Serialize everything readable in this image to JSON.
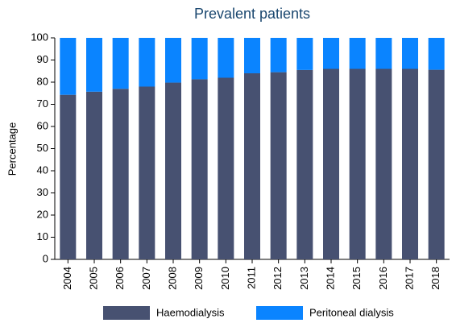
{
  "chart_data": {
    "type": "stacked_bar",
    "title": "Prevalent patients",
    "y_label": "Percentage",
    "categories": [
      "2004",
      "2005",
      "2006",
      "2007",
      "2008",
      "2009",
      "2010",
      "2011",
      "2012",
      "2013",
      "2014",
      "2015",
      "2016",
      "2017",
      "2018"
    ],
    "series": [
      {
        "name": "Haemodialysis",
        "color": "#475171",
        "values": [
          74.3,
          75.7,
          77,
          78,
          79.8,
          81.3,
          82,
          84,
          84.5,
          85.5,
          86,
          86,
          86,
          86,
          85.6
        ]
      },
      {
        "name": "Peritoneal dialysis",
        "color": "#0a84ff",
        "values": [
          25.7,
          24.3,
          23,
          22,
          20.2,
          18.7,
          18,
          16,
          15.5,
          14.5,
          14,
          14,
          14,
          14,
          14.4
        ]
      }
    ],
    "ylim": [
      0,
      100
    ],
    "yticks": [
      0,
      10,
      20,
      30,
      40,
      50,
      60,
      70,
      80,
      90,
      100
    ],
    "legend": "bottom"
  }
}
